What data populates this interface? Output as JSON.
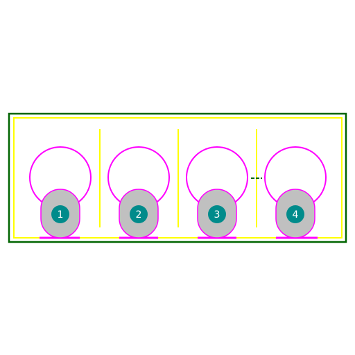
{
  "footprint": {
    "colors": {
      "background": "#ffffff",
      "courtyard": "#006400",
      "silkscreen": "#ffff00",
      "fabrication": "#ff00ff",
      "pad_fill": "#c0c0c0",
      "pad_outline": "#ff00ff",
      "pad_number_bg": "#008b8b",
      "pad_number_text": "#ffffff",
      "marker": "#006400"
    },
    "pads": [
      {
        "number": "1"
      },
      {
        "number": "2"
      },
      {
        "number": "3"
      },
      {
        "number": "4"
      }
    ]
  }
}
